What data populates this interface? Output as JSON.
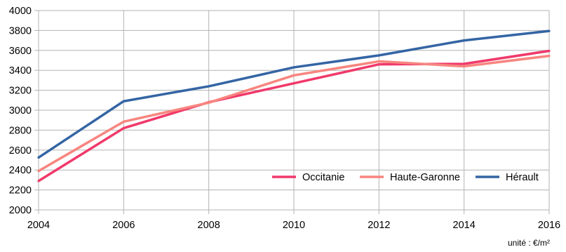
{
  "chart_data": {
    "type": "line",
    "title": "",
    "xlabel": "",
    "ylabel": "",
    "x": [
      2004,
      2006,
      2008,
      2010,
      2012,
      2014,
      2016
    ],
    "xticks": [
      "2004",
      "2006",
      "2008",
      "2010",
      "2012",
      "2014",
      "2016"
    ],
    "xlim": [
      2004,
      2016
    ],
    "yticks": [
      "2000",
      "2200",
      "2400",
      "2600",
      "2800",
      "3000",
      "3200",
      "3400",
      "3600",
      "3800",
      "4000"
    ],
    "ylim": [
      2000,
      4000
    ],
    "grid": true,
    "legend_position": "bottom-right",
    "series": [
      {
        "name": "Occitanie",
        "color": "#f0396a",
        "values": [
          2290,
          2820,
          3080,
          3270,
          3460,
          3465,
          3595
        ]
      },
      {
        "name": "Haute-Garonne",
        "color": "#f7857f",
        "values": [
          2390,
          2885,
          3075,
          3350,
          3490,
          3440,
          3545
        ]
      },
      {
        "name": "Hérault",
        "color": "#3465a4",
        "values": [
          2525,
          3090,
          3240,
          3430,
          3550,
          3700,
          3795
        ]
      }
    ],
    "unit_note": "unité : €/m²"
  }
}
